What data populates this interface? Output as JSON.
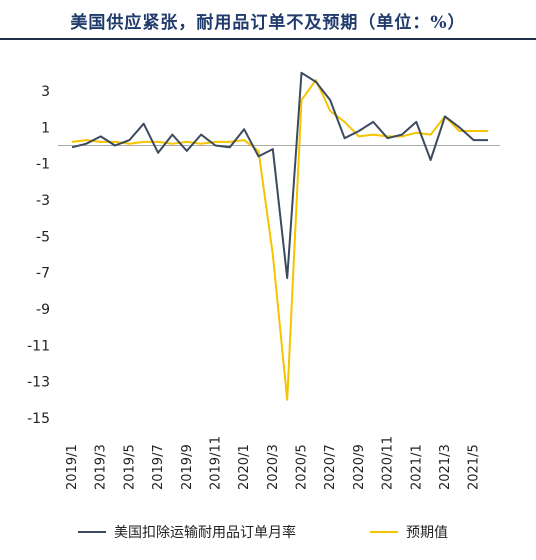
{
  "title": "美国供应紧张，耐用品订单不及预期（单位：%）",
  "chart_data": {
    "type": "line",
    "title": "美国供应紧张，耐用品订单不及预期（单位：%）",
    "xlabel": "",
    "ylabel": "",
    "x": [
      "2019/1",
      "2019/2",
      "2019/3",
      "2019/4",
      "2019/5",
      "2019/6",
      "2019/7",
      "2019/8",
      "2019/9",
      "2019/10",
      "2019/11",
      "2019/12",
      "2020/1",
      "2020/2",
      "2020/3",
      "2020/4",
      "2020/5",
      "2020/6",
      "2020/7",
      "2020/8",
      "2020/9",
      "2020/10",
      "2020/11",
      "2020/12",
      "2021/1",
      "2021/2",
      "2021/3",
      "2021/4",
      "2021/5",
      "2021/6"
    ],
    "x_tick_labels": [
      "2019/1",
      "2019/3",
      "2019/5",
      "2019/7",
      "2019/9",
      "2019/11",
      "2020/1",
      "2020/3",
      "2020/5",
      "2020/7",
      "2020/9",
      "2020/11",
      "2021/1",
      "2021/3",
      "2021/5"
    ],
    "ylim": [
      -15,
      5
    ],
    "y_ticks": [
      3,
      1,
      -1,
      -3,
      -5,
      -7,
      -9,
      -11,
      -13,
      -15
    ],
    "legend_position": "bottom",
    "grid": false,
    "series": [
      {
        "name": "美国扣除运输耐用品订单月率",
        "color": "#3b4a5e",
        "values": [
          -0.1,
          0.1,
          0.5,
          0.0,
          0.3,
          1.2,
          -0.4,
          0.6,
          -0.3,
          0.6,
          0.0,
          -0.1,
          0.9,
          -0.6,
          -0.2,
          -7.3,
          4.0,
          3.5,
          2.5,
          0.4,
          0.8,
          1.3,
          0.4,
          0.6,
          1.3,
          -0.8,
          1.6,
          1.0,
          0.3,
          0.3
        ]
      },
      {
        "name": "预期值",
        "color": "#f5c400",
        "values": [
          0.2,
          0.3,
          0.2,
          0.2,
          0.1,
          0.2,
          0.2,
          0.1,
          0.2,
          0.1,
          0.2,
          0.2,
          0.3,
          -0.3,
          -6.0,
          -14.0,
          2.5,
          3.6,
          1.9,
          1.3,
          0.5,
          0.6,
          0.5,
          0.5,
          0.7,
          0.6,
          1.6,
          0.8,
          0.8,
          0.8
        ]
      }
    ]
  },
  "colors": {
    "title": "#1f3a6b",
    "axis": "#999999"
  }
}
